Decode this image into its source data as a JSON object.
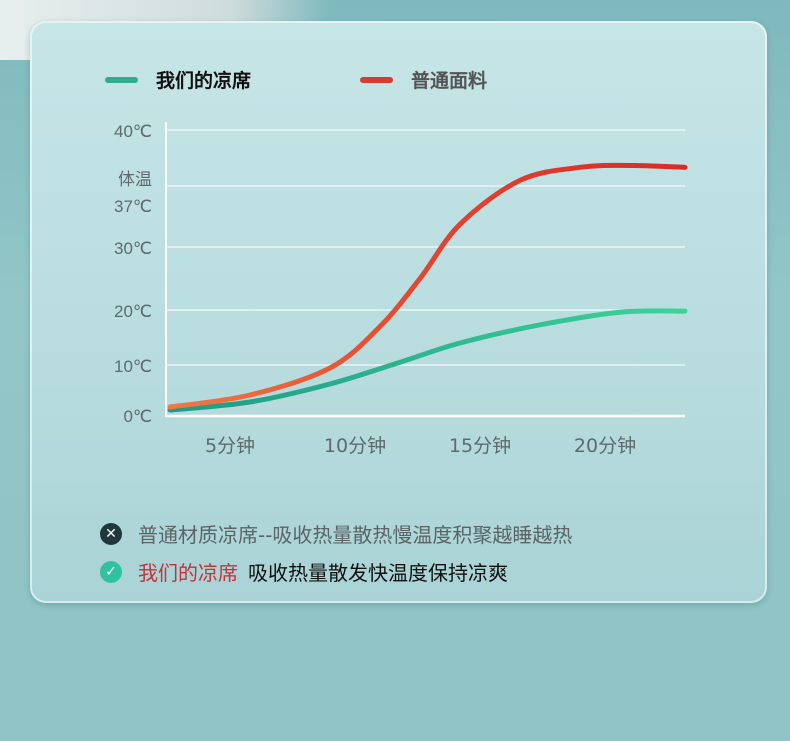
{
  "legend": [
    {
      "label": "我们的凉席",
      "color": "#2fae8e"
    },
    {
      "label": "普通面料",
      "color": "#d93a32"
    }
  ],
  "chart_data": {
    "type": "line",
    "xlabel": "",
    "ylabel": "",
    "x_ticks": [
      {
        "value": 5,
        "label": "5分钟"
      },
      {
        "value": 10,
        "label": "10分钟"
      },
      {
        "value": 15,
        "label": "15分钟"
      },
      {
        "value": 20,
        "label": "20分钟"
      }
    ],
    "y_ticks": [
      {
        "value": 0,
        "label": "0℃"
      },
      {
        "value": 10,
        "label": "10℃"
      },
      {
        "value": 20,
        "label": "20℃"
      },
      {
        "value": 30,
        "label": "30℃"
      },
      {
        "value": 37,
        "label": "37℃",
        "note": "体温"
      },
      {
        "value": 40,
        "label": "40℃"
      }
    ],
    "ylim": [
      0,
      40
    ],
    "xlim": [
      2.5,
      23.5
    ],
    "grid": true,
    "legend_position": "top",
    "series": [
      {
        "name": "我们的凉席",
        "color": "#2fae8e",
        "x": [
          2.6,
          5.8,
          9,
          11.8,
          14.2,
          17.4,
          20.6,
          23.2
        ],
        "y": [
          1,
          2.6,
          6.2,
          10.5,
          14,
          17.3,
          19.6,
          19.8
        ]
      },
      {
        "name": "普通面料",
        "color": "#d93a32",
        "x": [
          2.6,
          5.8,
          9,
          11,
          12.6,
          14.2,
          16.6,
          19,
          21,
          23.2
        ],
        "y": [
          1.6,
          4,
          9.4,
          17,
          25,
          32.6,
          37.3,
          38,
          38.1,
          38
        ]
      }
    ]
  },
  "notes": {
    "bad": {
      "icon": "x-circle-icon",
      "text": "普通材质凉席--吸收热量散热慢温度积聚越睡越热"
    },
    "good": {
      "icon": "check-circle-icon",
      "highlight": "我们的凉席",
      "text": "吸收热量散发快温度保持凉爽",
      "highlight_color": "#c0343a"
    }
  }
}
